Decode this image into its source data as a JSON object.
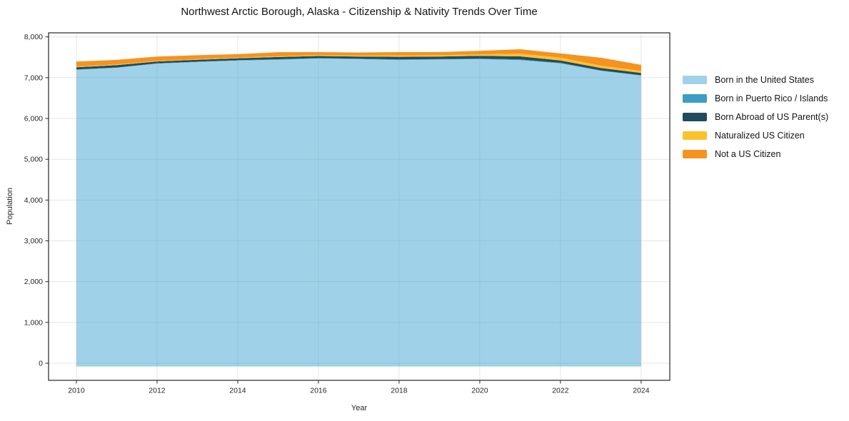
{
  "chart_data": {
    "type": "area",
    "stacked": true,
    "title": "Northwest Arctic Borough, Alaska - Citizenship & Nativity Trends Over Time",
    "xlabel": "Year",
    "ylabel": "Population",
    "x": [
      2010,
      2011,
      2012,
      2013,
      2014,
      2015,
      2016,
      2017,
      2018,
      2019,
      2020,
      2021,
      2022,
      2023,
      2024
    ],
    "series": [
      {
        "name": "Born in the United States",
        "color": "#9fd2e9",
        "values": [
          7275,
          7325,
          7425,
          7465,
          7500,
          7520,
          7550,
          7535,
          7515,
          7525,
          7535,
          7510,
          7430,
          7250,
          7130
        ]
      },
      {
        "name": "Born in Puerto Rico / Islands",
        "color": "#3d9dc2",
        "values": [
          5,
          5,
          8,
          8,
          8,
          12,
          10,
          10,
          14,
          13,
          14,
          18,
          15,
          10,
          10
        ]
      },
      {
        "name": "Born Abroad of US Parent(s)",
        "color": "#214b5f",
        "values": [
          55,
          60,
          46,
          48,
          50,
          55,
          52,
          55,
          64,
          62,
          68,
          74,
          58,
          58,
          57
        ]
      },
      {
        "name": "Naturalized US Citizen",
        "color": "#fcc22d",
        "values": [
          20,
          17,
          15,
          15,
          17,
          20,
          20,
          22,
          34,
          33,
          35,
          68,
          68,
          57,
          51
        ]
      },
      {
        "name": "Not a US Citizen",
        "color": "#f6921f",
        "values": [
          120,
          110,
          105,
          94,
          82,
          99,
          75,
          75,
          80,
          75,
          88,
          107,
          103,
          195,
          146
        ]
      }
    ],
    "xticks": [
      2010,
      2012,
      2014,
      2016,
      2018,
      2020,
      2022,
      2024
    ],
    "yticks": [
      0,
      1000,
      2000,
      3000,
      4000,
      5000,
      6000,
      7000,
      8000
    ],
    "ytick_labels": [
      "0",
      "1,000",
      "2,000",
      "3,000",
      "4,000",
      "5,000",
      "6,000",
      "7,000",
      "8,000"
    ],
    "xlim": [
      2009.31,
      2024.71
    ],
    "ylim": [
      -420,
      8100
    ],
    "baseline": -80,
    "grid": true,
    "legend_position": "right",
    "colors": {
      "grid_overlay": "rgba(130,140,150,0.22)",
      "spine": "#262626",
      "tick": "#262626"
    }
  }
}
